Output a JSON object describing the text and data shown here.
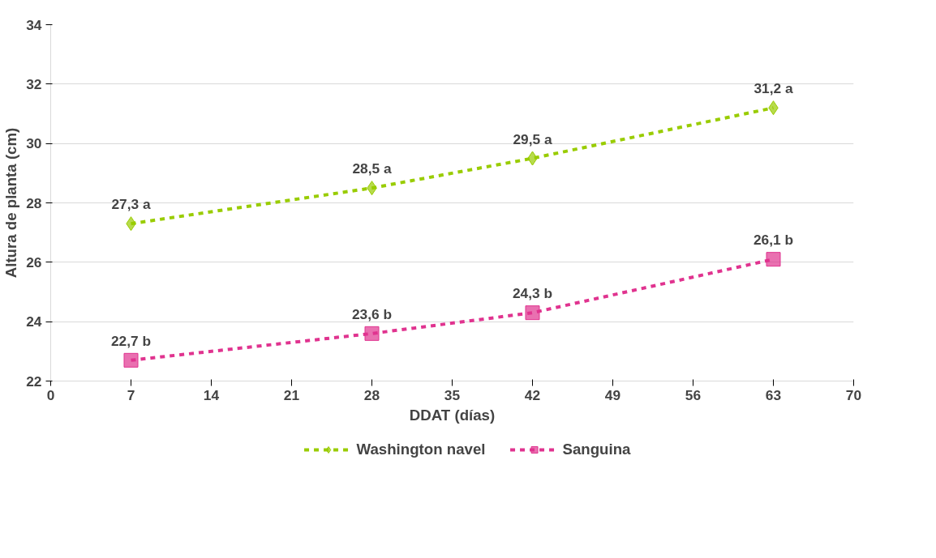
{
  "chart_data": {
    "type": "line",
    "xlabel": "DDAT (días)",
    "ylabel": "Altura de planta (cm)",
    "x": [
      7,
      28,
      42,
      63
    ],
    "series": [
      {
        "name": "Washington navel",
        "color": "#99cc00",
        "marker": "diamond",
        "values": [
          27.3,
          28.5,
          29.5,
          31.2
        ],
        "value_labels": [
          "27,3 a",
          "28,5 a",
          "29,5 a",
          "31,2 a"
        ]
      },
      {
        "name": "Sanguina",
        "color": "#e0338f",
        "marker": "square",
        "values": [
          22.7,
          23.6,
          24.3,
          26.1
        ],
        "value_labels": [
          "22,7 b",
          "23,6 b",
          "24,3 b",
          "26,1 b"
        ]
      }
    ],
    "xlim": [
      0,
      70
    ],
    "xticks": [
      0,
      7,
      14,
      21,
      28,
      35,
      42,
      49,
      56,
      63,
      70
    ],
    "ylim": [
      22,
      34
    ],
    "yticks": [
      22,
      24,
      26,
      28,
      30,
      32,
      34
    ],
    "grid": "y",
    "legend": "bottom",
    "line_style": "dashed"
  }
}
